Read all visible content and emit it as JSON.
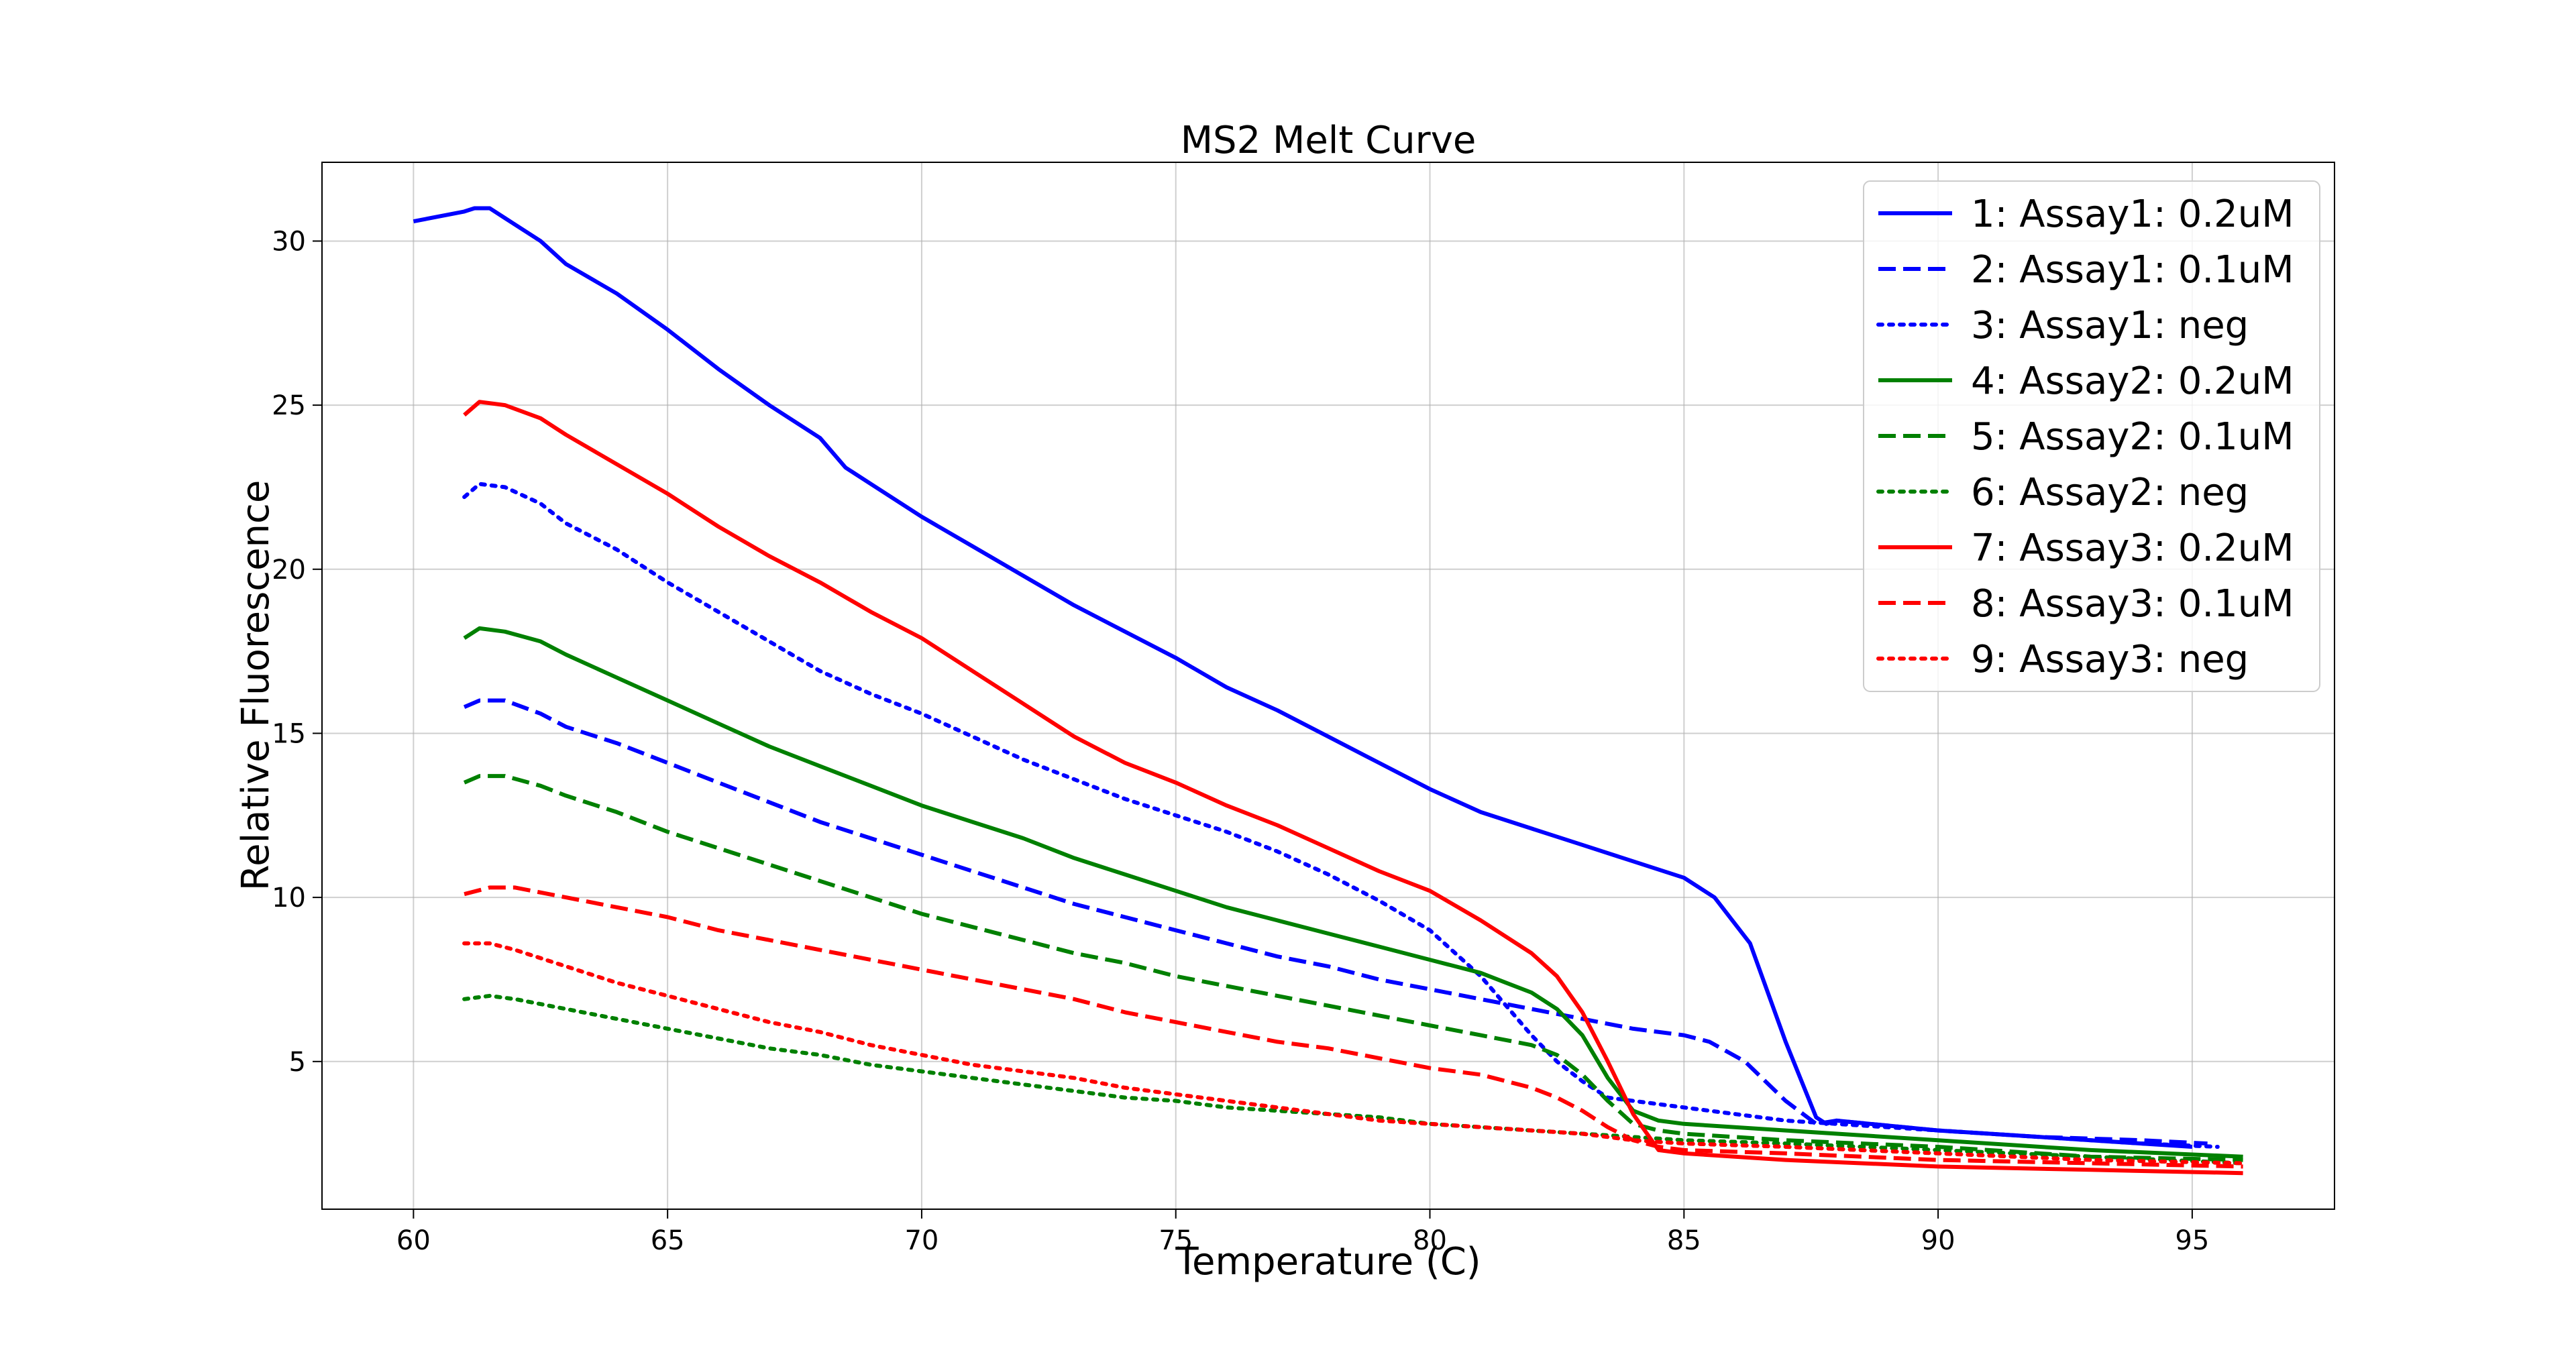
{
  "chart_data": {
    "type": "line",
    "title": "MS2 Melt Curve",
    "xlabel": "Temperature (C)",
    "ylabel": "Relative Fluorescence",
    "xlim": [
      58.2,
      97.8
    ],
    "ylim": [
      0.5,
      32.4
    ],
    "xticks": [
      60,
      65,
      70,
      75,
      80,
      85,
      90,
      95
    ],
    "yticks": [
      5,
      10,
      15,
      20,
      25,
      30
    ],
    "grid": true,
    "legend_position": "top-right",
    "series": [
      {
        "name": "1: Assay1: 0.2uM",
        "color": "#0000ff",
        "style": "solid",
        "points": [
          [
            60,
            30.6
          ],
          [
            61,
            30.9
          ],
          [
            61.2,
            31.0
          ],
          [
            61.5,
            31.0
          ],
          [
            61.8,
            30.7
          ],
          [
            62.5,
            30.0
          ],
          [
            63,
            29.3
          ],
          [
            64,
            28.4
          ],
          [
            65,
            27.3
          ],
          [
            66,
            26.1
          ],
          [
            67,
            25.0
          ],
          [
            68,
            24.0
          ],
          [
            68.5,
            23.1
          ],
          [
            69,
            22.6
          ],
          [
            70,
            21.6
          ],
          [
            71,
            20.7
          ],
          [
            72,
            19.8
          ],
          [
            73,
            18.9
          ],
          [
            74,
            18.1
          ],
          [
            75,
            17.3
          ],
          [
            76,
            16.4
          ],
          [
            77,
            15.7
          ],
          [
            78,
            14.9
          ],
          [
            79,
            14.1
          ],
          [
            80,
            13.3
          ],
          [
            81,
            12.6
          ],
          [
            82,
            12.1
          ],
          [
            83,
            11.6
          ],
          [
            84,
            11.1
          ],
          [
            85,
            10.6
          ],
          [
            85.6,
            10.0
          ],
          [
            86.3,
            8.6
          ],
          [
            87,
            5.6
          ],
          [
            87.6,
            3.3
          ],
          [
            87.8,
            3.1
          ],
          [
            88,
            3.2
          ],
          [
            90,
            2.9
          ],
          [
            92,
            2.7
          ],
          [
            94,
            2.5
          ],
          [
            95,
            2.4
          ]
        ]
      },
      {
        "name": "2: Assay1: 0.1uM",
        "color": "#0000ff",
        "style": "dashed",
        "points": [
          [
            61,
            15.8
          ],
          [
            61.3,
            16.0
          ],
          [
            61.8,
            16.0
          ],
          [
            62.5,
            15.6
          ],
          [
            63,
            15.2
          ],
          [
            64,
            14.7
          ],
          [
            65,
            14.1
          ],
          [
            66,
            13.5
          ],
          [
            67,
            12.9
          ],
          [
            68,
            12.3
          ],
          [
            69,
            11.8
          ],
          [
            70,
            11.3
          ],
          [
            71,
            10.8
          ],
          [
            72,
            10.3
          ],
          [
            73,
            9.8
          ],
          [
            74,
            9.4
          ],
          [
            75,
            9.0
          ],
          [
            76,
            8.6
          ],
          [
            77,
            8.2
          ],
          [
            78,
            7.9
          ],
          [
            79,
            7.5
          ],
          [
            80,
            7.2
          ],
          [
            81,
            6.9
          ],
          [
            82,
            6.6
          ],
          [
            83,
            6.3
          ],
          [
            84,
            6.0
          ],
          [
            85,
            5.8
          ],
          [
            85.5,
            5.6
          ],
          [
            86.2,
            5.0
          ],
          [
            87,
            3.8
          ],
          [
            87.6,
            3.1
          ],
          [
            88,
            3.2
          ],
          [
            90,
            2.9
          ],
          [
            92,
            2.7
          ],
          [
            94,
            2.6
          ],
          [
            95.3,
            2.5
          ]
        ]
      },
      {
        "name": "3: Assay1: neg",
        "color": "#0000ff",
        "style": "dotted",
        "points": [
          [
            61,
            22.2
          ],
          [
            61.3,
            22.6
          ],
          [
            61.8,
            22.5
          ],
          [
            62.5,
            22.0
          ],
          [
            63,
            21.4
          ],
          [
            64,
            20.6
          ],
          [
            65,
            19.6
          ],
          [
            66,
            18.7
          ],
          [
            67,
            17.8
          ],
          [
            68,
            16.9
          ],
          [
            69,
            16.2
          ],
          [
            70,
            15.6
          ],
          [
            71,
            14.9
          ],
          [
            72,
            14.2
          ],
          [
            73,
            13.6
          ],
          [
            74,
            13.0
          ],
          [
            75,
            12.5
          ],
          [
            76,
            12.0
          ],
          [
            77,
            11.4
          ],
          [
            78,
            10.7
          ],
          [
            79,
            9.9
          ],
          [
            80,
            9.0
          ],
          [
            81,
            7.6
          ],
          [
            82,
            5.8
          ],
          [
            82.5,
            5.0
          ],
          [
            83,
            4.4
          ],
          [
            83.5,
            3.9
          ],
          [
            84,
            3.8
          ],
          [
            85,
            3.6
          ],
          [
            86,
            3.4
          ],
          [
            87,
            3.2
          ],
          [
            88,
            3.1
          ],
          [
            90,
            2.9
          ],
          [
            92,
            2.7
          ],
          [
            94,
            2.5
          ],
          [
            95.5,
            2.4
          ]
        ]
      },
      {
        "name": "4: Assay2: 0.2uM",
        "color": "#008000",
        "style": "solid",
        "points": [
          [
            61,
            17.9
          ],
          [
            61.3,
            18.2
          ],
          [
            61.8,
            18.1
          ],
          [
            62.5,
            17.8
          ],
          [
            63,
            17.4
          ],
          [
            64,
            16.7
          ],
          [
            65,
            16.0
          ],
          [
            66,
            15.3
          ],
          [
            67,
            14.6
          ],
          [
            68,
            14.0
          ],
          [
            69,
            13.4
          ],
          [
            70,
            12.8
          ],
          [
            71,
            12.3
          ],
          [
            72,
            11.8
          ],
          [
            73,
            11.2
          ],
          [
            74,
            10.7
          ],
          [
            75,
            10.2
          ],
          [
            76,
            9.7
          ],
          [
            77,
            9.3
          ],
          [
            78,
            8.9
          ],
          [
            79,
            8.5
          ],
          [
            80,
            8.1
          ],
          [
            81,
            7.7
          ],
          [
            81.5,
            7.4
          ],
          [
            82,
            7.1
          ],
          [
            82.5,
            6.6
          ],
          [
            83,
            5.8
          ],
          [
            83.5,
            4.5
          ],
          [
            84,
            3.5
          ],
          [
            84.5,
            3.2
          ],
          [
            85,
            3.1
          ],
          [
            87,
            2.9
          ],
          [
            90,
            2.6
          ],
          [
            93,
            2.3
          ],
          [
            96,
            2.1
          ]
        ]
      },
      {
        "name": "5: Assay2: 0.1uM",
        "color": "#008000",
        "style": "dashed",
        "points": [
          [
            61,
            13.5
          ],
          [
            61.3,
            13.7
          ],
          [
            61.8,
            13.7
          ],
          [
            62.5,
            13.4
          ],
          [
            63,
            13.1
          ],
          [
            64,
            12.6
          ],
          [
            65,
            12.0
          ],
          [
            66,
            11.5
          ],
          [
            67,
            11.0
          ],
          [
            68,
            10.5
          ],
          [
            69,
            10.0
          ],
          [
            70,
            9.5
          ],
          [
            71,
            9.1
          ],
          [
            72,
            8.7
          ],
          [
            73,
            8.3
          ],
          [
            74,
            8.0
          ],
          [
            75,
            7.6
          ],
          [
            76,
            7.3
          ],
          [
            77,
            7.0
          ],
          [
            78,
            6.7
          ],
          [
            79,
            6.4
          ],
          [
            80,
            6.1
          ],
          [
            81,
            5.8
          ],
          [
            82,
            5.5
          ],
          [
            82.5,
            5.2
          ],
          [
            83,
            4.6
          ],
          [
            83.5,
            3.8
          ],
          [
            84,
            3.1
          ],
          [
            84.5,
            2.9
          ],
          [
            85,
            2.8
          ],
          [
            87,
            2.6
          ],
          [
            90,
            2.4
          ],
          [
            93,
            2.1
          ],
          [
            96,
            2.0
          ]
        ]
      },
      {
        "name": "6: Assay2: neg",
        "color": "#008000",
        "style": "dotted",
        "points": [
          [
            61,
            6.9
          ],
          [
            61.5,
            7.0
          ],
          [
            62,
            6.9
          ],
          [
            63,
            6.6
          ],
          [
            64,
            6.3
          ],
          [
            65,
            6.0
          ],
          [
            66,
            5.7
          ],
          [
            67,
            5.4
          ],
          [
            68,
            5.2
          ],
          [
            69,
            4.9
          ],
          [
            70,
            4.7
          ],
          [
            71,
            4.5
          ],
          [
            72,
            4.3
          ],
          [
            73,
            4.1
          ],
          [
            74,
            3.9
          ],
          [
            75,
            3.8
          ],
          [
            76,
            3.6
          ],
          [
            77,
            3.5
          ],
          [
            78,
            3.4
          ],
          [
            79,
            3.3
          ],
          [
            80,
            3.1
          ],
          [
            81,
            3.0
          ],
          [
            82,
            2.9
          ],
          [
            83,
            2.8
          ],
          [
            84,
            2.7
          ],
          [
            85,
            2.6
          ],
          [
            87,
            2.5
          ],
          [
            90,
            2.3
          ],
          [
            93,
            2.1
          ],
          [
            96,
            1.9
          ]
        ]
      },
      {
        "name": "7: Assay3: 0.2uM",
        "color": "#ff0000",
        "style": "solid",
        "points": [
          [
            61,
            24.7
          ],
          [
            61.3,
            25.1
          ],
          [
            61.8,
            25.0
          ],
          [
            62.5,
            24.6
          ],
          [
            63,
            24.1
          ],
          [
            64,
            23.2
          ],
          [
            65,
            22.3
          ],
          [
            66,
            21.3
          ],
          [
            67,
            20.4
          ],
          [
            68,
            19.6
          ],
          [
            69,
            18.7
          ],
          [
            70,
            17.9
          ],
          [
            71,
            16.9
          ],
          [
            72,
            15.9
          ],
          [
            73,
            14.9
          ],
          [
            74,
            14.1
          ],
          [
            75,
            13.5
          ],
          [
            76,
            12.8
          ],
          [
            77,
            12.2
          ],
          [
            78,
            11.5
          ],
          [
            79,
            10.8
          ],
          [
            80,
            10.2
          ],
          [
            81,
            9.3
          ],
          [
            82,
            8.3
          ],
          [
            82.5,
            7.6
          ],
          [
            83,
            6.5
          ],
          [
            83.5,
            5.0
          ],
          [
            84,
            3.4
          ],
          [
            84.5,
            2.3
          ],
          [
            85,
            2.2
          ],
          [
            87,
            2.0
          ],
          [
            90,
            1.8
          ],
          [
            93,
            1.7
          ],
          [
            96,
            1.6
          ]
        ]
      },
      {
        "name": "8: Assay3: 0.1uM",
        "color": "#ff0000",
        "style": "dashed",
        "points": [
          [
            61,
            10.1
          ],
          [
            61.5,
            10.3
          ],
          [
            62,
            10.3
          ],
          [
            63,
            10.0
          ],
          [
            64,
            9.7
          ],
          [
            65,
            9.4
          ],
          [
            66,
            9.0
          ],
          [
            67,
            8.7
          ],
          [
            68,
            8.4
          ],
          [
            69,
            8.1
          ],
          [
            70,
            7.8
          ],
          [
            71,
            7.5
          ],
          [
            72,
            7.2
          ],
          [
            73,
            6.9
          ],
          [
            74,
            6.5
          ],
          [
            75,
            6.2
          ],
          [
            76,
            5.9
          ],
          [
            77,
            5.6
          ],
          [
            78,
            5.4
          ],
          [
            79,
            5.1
          ],
          [
            80,
            4.8
          ],
          [
            81,
            4.6
          ],
          [
            82,
            4.2
          ],
          [
            82.5,
            3.9
          ],
          [
            83,
            3.5
          ],
          [
            83.5,
            3.0
          ],
          [
            84,
            2.6
          ],
          [
            84.5,
            2.4
          ],
          [
            85,
            2.3
          ],
          [
            87,
            2.2
          ],
          [
            90,
            2.0
          ],
          [
            93,
            1.9
          ],
          [
            96,
            1.8
          ]
        ]
      },
      {
        "name": "9: Assay3: neg",
        "color": "#ff0000",
        "style": "dotted",
        "points": [
          [
            61,
            8.6
          ],
          [
            61.5,
            8.6
          ],
          [
            62,
            8.4
          ],
          [
            63,
            7.9
          ],
          [
            64,
            7.4
          ],
          [
            65,
            7.0
          ],
          [
            66,
            6.6
          ],
          [
            67,
            6.2
          ],
          [
            68,
            5.9
          ],
          [
            69,
            5.5
          ],
          [
            70,
            5.2
          ],
          [
            71,
            4.9
          ],
          [
            72,
            4.7
          ],
          [
            73,
            4.5
          ],
          [
            74,
            4.2
          ],
          [
            75,
            4.0
          ],
          [
            76,
            3.8
          ],
          [
            77,
            3.6
          ],
          [
            78,
            3.4
          ],
          [
            79,
            3.2
          ],
          [
            80,
            3.1
          ],
          [
            81,
            3.0
          ],
          [
            82,
            2.9
          ],
          [
            83,
            2.8
          ],
          [
            84,
            2.6
          ],
          [
            85,
            2.5
          ],
          [
            87,
            2.4
          ],
          [
            90,
            2.2
          ],
          [
            93,
            2.0
          ],
          [
            96,
            1.9
          ]
        ]
      }
    ]
  }
}
